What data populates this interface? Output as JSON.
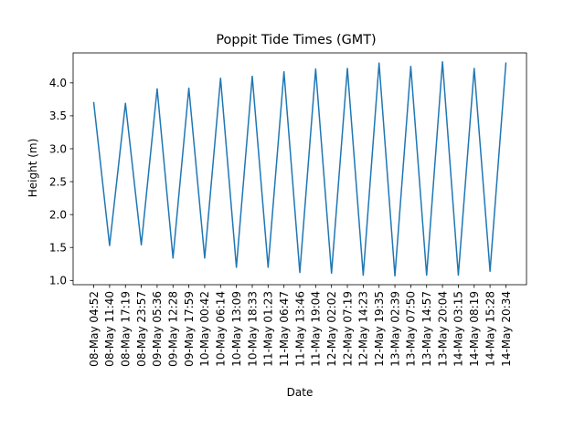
{
  "chart_data": {
    "type": "line",
    "title": "Poppit Tide Times (GMT)",
    "xlabel": "Date",
    "ylabel": "Height (m)",
    "categories": [
      "08-May 04:52",
      "08-May 11:40",
      "08-May 17:19",
      "08-May 23:57",
      "09-May 05:36",
      "09-May 12:28",
      "09-May 17:59",
      "10-May 00:42",
      "10-May 06:14",
      "10-May 13:09",
      "10-May 18:33",
      "11-May 01:23",
      "11-May 06:47",
      "11-May 13:46",
      "11-May 19:04",
      "12-May 02:02",
      "12-May 07:19",
      "12-May 14:23",
      "12-May 19:35",
      "13-May 02:39",
      "13-May 07:50",
      "13-May 14:57",
      "13-May 20:04",
      "14-May 03:15",
      "14-May 08:19",
      "14-May 15:28",
      "14-May 20:34"
    ],
    "series": [
      {
        "values": [
          3.7,
          1.53,
          3.69,
          1.54,
          3.91,
          1.34,
          3.92,
          1.34,
          4.07,
          1.2,
          4.1,
          1.2,
          4.17,
          1.12,
          4.21,
          1.11,
          4.22,
          1.08,
          4.3,
          1.07,
          4.25,
          1.08,
          4.32,
          1.08,
          4.22,
          1.14,
          4.3
        ],
        "color": "#1f77b4"
      }
    ],
    "ylim": [
      0.935,
      4.455
    ],
    "yticks": [
      "1.0",
      "1.5",
      "2.0",
      "2.5",
      "3.0",
      "3.5",
      "4.0"
    ],
    "grid": false
  }
}
